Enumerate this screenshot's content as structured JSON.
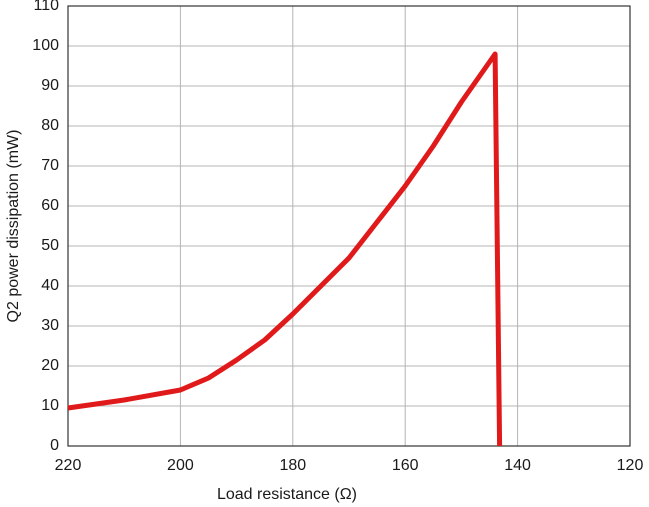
{
  "chart_data": {
    "type": "line",
    "x_label": "Load resistance (Ω)",
    "y_label": "Q2 power dissipation (mW)",
    "x": [
      220,
      210,
      200,
      195,
      190,
      185,
      180,
      175,
      170,
      165,
      160,
      155,
      150,
      145,
      144,
      143.2
    ],
    "values": [
      9.5,
      11.5,
      14,
      17,
      21.5,
      26.5,
      33,
      40,
      47,
      56,
      65,
      75,
      86,
      96,
      98,
      0
    ],
    "color": "#e01a1a",
    "xlim": [
      220,
      120
    ],
    "xticks": [
      220,
      200,
      180,
      160,
      140,
      120
    ],
    "ylim": [
      0,
      110
    ],
    "yticks": [
      0,
      10,
      20,
      30,
      40,
      50,
      60,
      70,
      80,
      90,
      100,
      110
    ],
    "grid": true
  }
}
